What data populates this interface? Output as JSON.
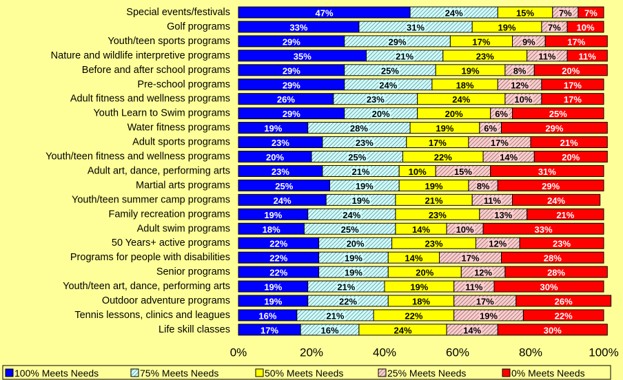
{
  "chart_data": {
    "type": "stacked-barh",
    "categories": [
      "Special events/festivals",
      "Golf programs",
      "Youth/teen sports programs",
      "Nature and wildlife interpretive programs",
      "Before and after school programs",
      "Pre-school programs",
      "Adult fitness and wellness programs",
      "Youth Learn to Swim programs",
      "Water fitness programs",
      "Adult sports programs",
      "Youth/teen fitness and wellness programs",
      "Adult art, dance, performing arts",
      "Martial arts programs",
      "Youth/teen summer camp programs",
      "Family recreation programs",
      "Adult swim programs",
      "50 Years+ active programs",
      "Programs for people with disabilities",
      "Senior programs",
      "Youth/teen art, dance, performing arts",
      "Outdoor adventure programs",
      "Tennis lessons, clinics and leagues",
      "Life skill classes"
    ],
    "series": [
      {
        "name": "100% Meets Needs",
        "color": "#0000ff",
        "values": [
          47,
          33,
          29,
          35,
          29,
          29,
          26,
          29,
          19,
          23,
          20,
          23,
          25,
          24,
          19,
          18,
          22,
          22,
          22,
          19,
          19,
          16,
          17
        ],
        "value_labels": [
          "47%",
          "33%",
          "29%",
          "35%",
          "29%",
          "29%",
          "26%",
          "29%",
          "19%",
          "23%",
          "20%",
          "23%",
          "25%",
          "24%",
          "19%",
          "18%",
          "22%",
          "22%",
          "22%",
          "19%",
          "19%",
          "16%",
          "17%"
        ]
      },
      {
        "name": "75% Meets Needs",
        "color": "#ccffff",
        "pattern": "hatch",
        "values": [
          24,
          31,
          29,
          21,
          25,
          24,
          23,
          20,
          28,
          23,
          25,
          21,
          19,
          19,
          24,
          25,
          20,
          19,
          19,
          21,
          22,
          21,
          16
        ],
        "value_labels": [
          "24%",
          "31%",
          "29%",
          "21%",
          "25%",
          "24%",
          "23%",
          "20%",
          "28%",
          "23%",
          "25%",
          "21%",
          "19%",
          "19%",
          "24%",
          "25%",
          "20%",
          "19%",
          "19%",
          "21%",
          "22%",
          "21%",
          "16%"
        ]
      },
      {
        "name": "50% Meets Needs",
        "color": "#ffff00",
        "values": [
          15,
          19,
          17,
          23,
          19,
          18,
          24,
          20,
          19,
          17,
          22,
          10,
          19,
          21,
          23,
          14,
          23,
          14,
          20,
          19,
          18,
          22,
          24
        ],
        "value_labels": [
          "15%",
          "19%",
          "17%",
          "23%",
          "19%",
          "18%",
          "24%",
          "20%",
          "19%",
          "17%",
          "22%",
          "10%",
          "19%",
          "21%",
          "23%",
          "14%",
          "23%",
          "14%",
          "20%",
          "19%",
          "18%",
          "22%",
          "24%"
        ]
      },
      {
        "name": "25% Meets Needs",
        "color": "#ffcccc",
        "pattern": "hatch",
        "values": [
          7,
          7,
          9,
          11,
          8,
          12,
          10,
          6,
          6,
          17,
          14,
          15,
          8,
          11,
          13,
          10,
          12,
          17,
          12,
          11,
          17,
          19,
          14
        ],
        "value_labels": [
          "7%",
          "7%",
          "9%",
          "11%",
          "8%",
          "12%",
          "10%",
          "6%",
          "6%",
          "17%",
          "14%",
          "15%",
          "8%",
          "11%",
          "13%",
          "10%",
          "12%",
          "17%",
          "12%",
          "11%",
          "17%",
          "19%",
          "14%"
        ]
      },
      {
        "name": "0% Meets Needs",
        "color": "#ff0000",
        "values": [
          7,
          10,
          17,
          11,
          20,
          17,
          17,
          25,
          29,
          21,
          20,
          31,
          29,
          24,
          21,
          33,
          23,
          28,
          28,
          30,
          26,
          22,
          30
        ],
        "value_labels": [
          "7%",
          "10%",
          "17%",
          "11%",
          "20%",
          "17%",
          "17%",
          "25%",
          "29%",
          "21%",
          "20%",
          "31%",
          "29%",
          "24%",
          "21%",
          "33%",
          "23%",
          "28%",
          "28%",
          "30%",
          "26%",
          "22%",
          "30%"
        ]
      }
    ],
    "xlim": [
      0,
      100
    ],
    "xticks": [
      {
        "value": 0,
        "label": "0%"
      },
      {
        "value": 20,
        "label": "20%"
      },
      {
        "value": 40,
        "label": "40%"
      },
      {
        "value": 60,
        "label": "60%"
      },
      {
        "value": 80,
        "label": "80%"
      },
      {
        "value": 100,
        "label": "100%"
      }
    ],
    "legend": "bottom"
  }
}
